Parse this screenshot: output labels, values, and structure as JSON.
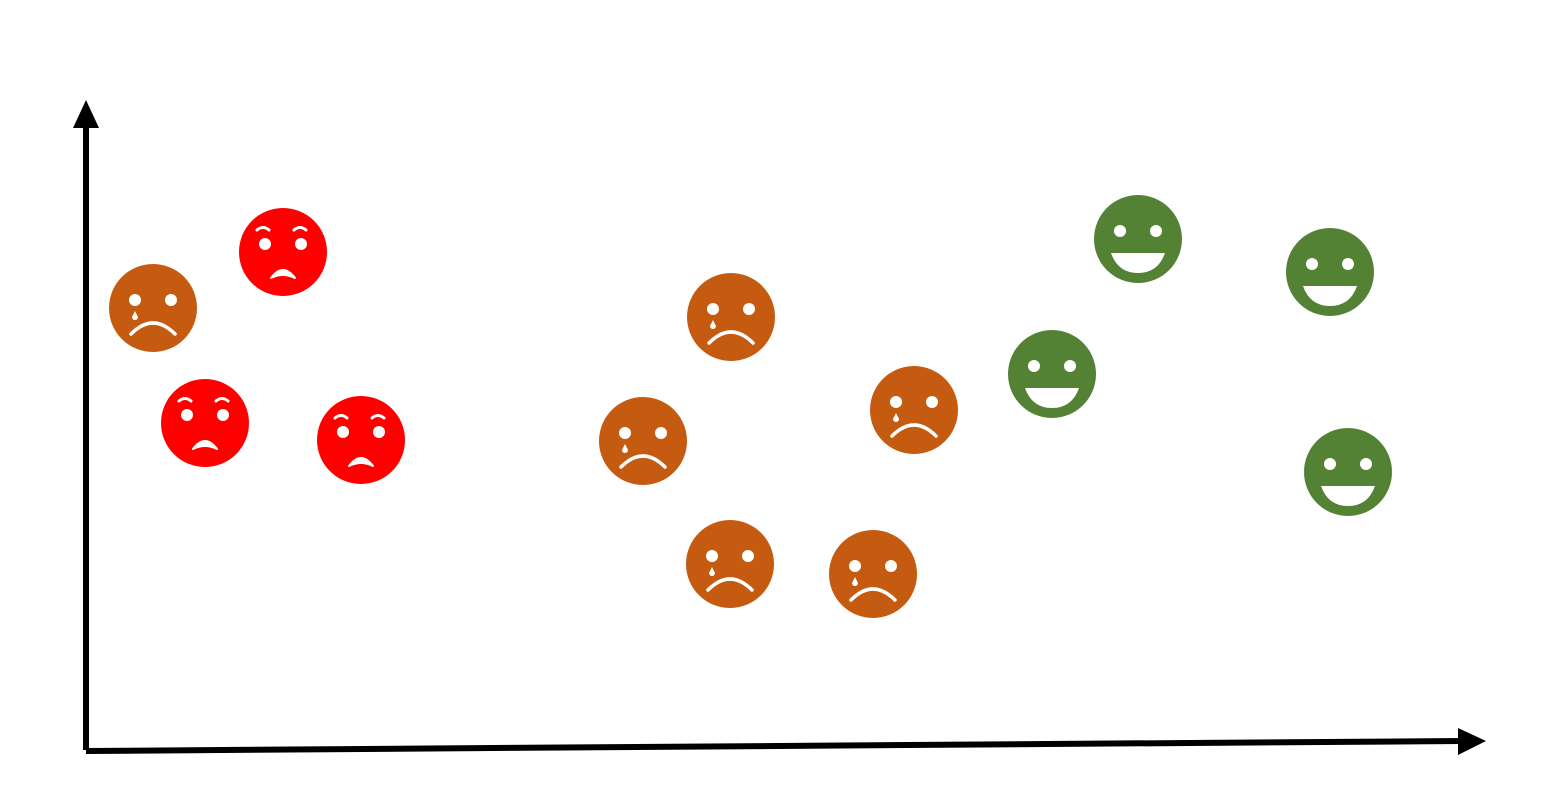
{
  "colors": {
    "background": "#ffffff",
    "axis": "#000000",
    "angry": "#fe0000",
    "sad": "#c55a11",
    "happy": "#548235",
    "feature": "#ffffff"
  },
  "faces": [
    {
      "id": "face-1",
      "mood": "sad",
      "icon": "sad-crying-face-icon"
    },
    {
      "id": "face-2",
      "mood": "angry",
      "icon": "angry-face-icon"
    },
    {
      "id": "face-3",
      "mood": "angry",
      "icon": "angry-face-icon"
    },
    {
      "id": "face-4",
      "mood": "angry",
      "icon": "angry-face-icon"
    },
    {
      "id": "face-5",
      "mood": "sad",
      "icon": "sad-crying-face-icon"
    },
    {
      "id": "face-6",
      "mood": "sad",
      "icon": "sad-crying-face-icon"
    },
    {
      "id": "face-7",
      "mood": "sad",
      "icon": "sad-crying-face-icon"
    },
    {
      "id": "face-8",
      "mood": "sad",
      "icon": "sad-crying-face-icon"
    },
    {
      "id": "face-9",
      "mood": "sad",
      "icon": "sad-crying-face-icon"
    },
    {
      "id": "face-10",
      "mood": "happy",
      "icon": "happy-face-icon"
    },
    {
      "id": "face-11",
      "mood": "happy",
      "icon": "happy-face-icon"
    },
    {
      "id": "face-12",
      "mood": "happy",
      "icon": "happy-face-icon"
    },
    {
      "id": "face-13",
      "mood": "happy",
      "icon": "happy-face-icon"
    }
  ]
}
